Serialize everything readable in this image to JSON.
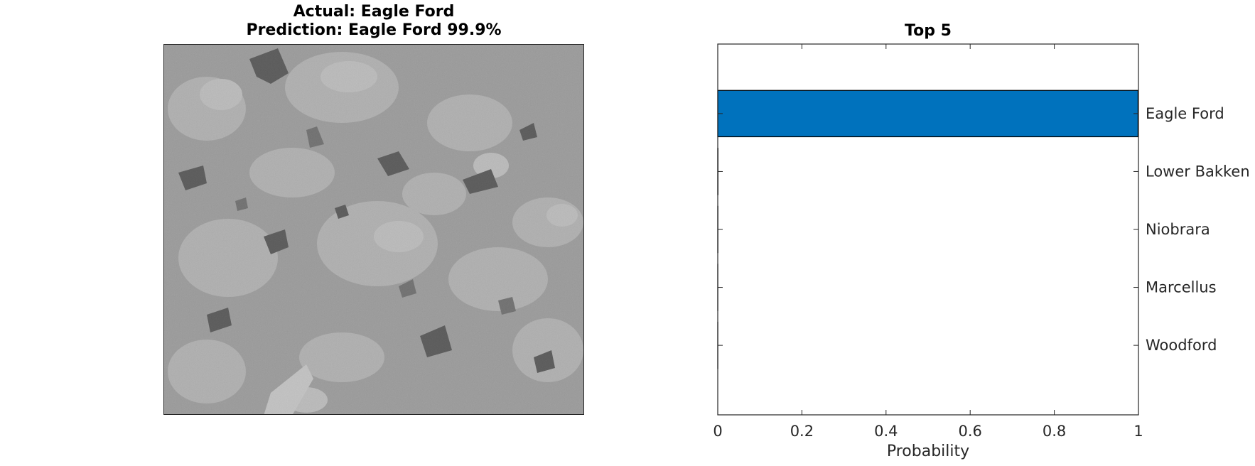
{
  "figure": {
    "image_title_line1": "Actual: Eagle Ford",
    "image_title_line2": "Prediction: Eagle Ford 99.9%"
  },
  "chart_data": {
    "type": "bar",
    "orientation": "horizontal",
    "title": "Top 5",
    "xlabel": "Probability",
    "ylabel": "",
    "categories": [
      "Eagle Ford",
      "Lower Bakken",
      "Niobrara",
      "Marcellus",
      "Woodford"
    ],
    "values": [
      0.999,
      0.0005,
      0.0003,
      0.0001,
      0.0001
    ],
    "xlim": [
      0,
      1
    ],
    "xticks": [
      0,
      0.2,
      0.4,
      0.6,
      0.8,
      1
    ],
    "xtick_labels": [
      "0",
      "0.2",
      "0.4",
      "0.6",
      "0.8",
      "1"
    ],
    "ytick_side": "right",
    "grid": false,
    "bar_color": "#0072BD",
    "edge_color": "#000000"
  }
}
